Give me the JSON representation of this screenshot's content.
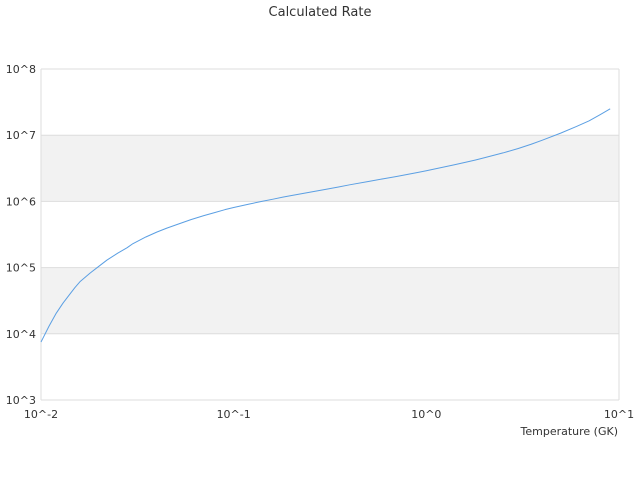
{
  "chart_data": {
    "type": "line",
    "title": "Calculated Rate",
    "xlabel": "Temperature (GK)",
    "ylabel": "",
    "x_scale": "log",
    "y_scale": "log",
    "xlim": [
      0.01,
      10
    ],
    "ylim": [
      1000,
      100000000
    ],
    "x_ticks": [
      "10^-2",
      "10^-1",
      "10^0",
      "10^1"
    ],
    "y_ticks": [
      "10^3",
      "10^4",
      "10^5",
      "10^6",
      "10^7",
      "10^8"
    ],
    "alternating_bands": true,
    "grid": true,
    "legend": "none",
    "line_color": "#5b9fe3",
    "band_color": "#f2f2f2",
    "series": [
      {
        "x": [
          0.01,
          0.011,
          0.012,
          0.013,
          0.014,
          0.015,
          0.016,
          0.018,
          0.02,
          0.022,
          0.025,
          0.028,
          0.03,
          0.035,
          0.04,
          0.045,
          0.05,
          0.06,
          0.07,
          0.08,
          0.09,
          0.1,
          0.12,
          0.14,
          0.16,
          0.18,
          0.2,
          0.25,
          0.3,
          0.35,
          0.4,
          0.5,
          0.6,
          0.7,
          0.8,
          0.9,
          1.0,
          1.2,
          1.4,
          1.6,
          1.8,
          2.0,
          2.5,
          3.0,
          3.5,
          4.0,
          5.0,
          6.0,
          7.0,
          8.0,
          9.0
        ],
        "y": [
          7500,
          13000,
          20500,
          29000,
          38500,
          50000,
          62000,
          83000,
          105000,
          130000,
          165000,
          200000,
          230000,
          290000,
          345000,
          395000,
          440000,
          530000,
          610000,
          680000,
          750000,
          810000,
          910000,
          1000000,
          1080000,
          1160000,
          1230000,
          1380000,
          1520000,
          1650000,
          1780000,
          2000000,
          2200000,
          2380000,
          2560000,
          2730000,
          2900000,
          3250000,
          3580000,
          3900000,
          4220000,
          4560000,
          5400000,
          6300000,
          7300000,
          8400000,
          10800000,
          13500000,
          16500000,
          20500000,
          25000000
        ]
      }
    ]
  }
}
